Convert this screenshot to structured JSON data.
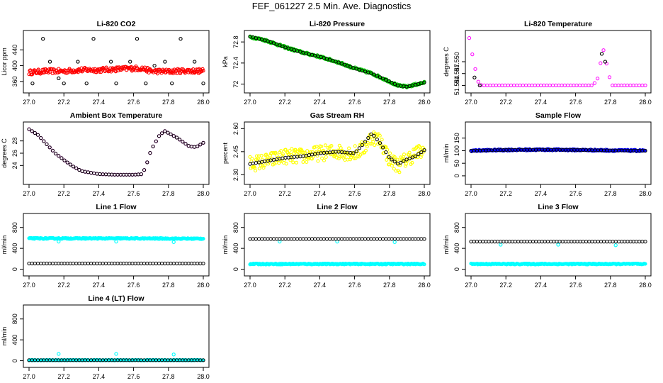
{
  "page_title": "FEF_061227  2.5 Min. Ave. Diagnostics",
  "chart_data": [
    {
      "type": "scatter",
      "title": "Li-820 CO2",
      "ylabel": "Licor ppm",
      "xlim": [
        27.0,
        28.0
      ],
      "ylim": [
        340,
        480
      ],
      "yticks": [
        360,
        400,
        440
      ],
      "xticks": [
        27.0,
        27.2,
        27.4,
        27.6,
        27.8,
        28.0
      ],
      "colors": {
        "main": "#ff0000",
        "overlay": "#000000"
      },
      "series": [
        {
          "key": "main",
          "kind": "dense",
          "color": "#ff0000",
          "x": [
            27.0,
            27.1,
            27.2,
            27.3,
            27.4,
            27.5,
            27.6,
            27.65,
            27.7,
            27.8,
            27.9,
            28.0
          ],
          "y": [
            383,
            386,
            386,
            389,
            389,
            391,
            393,
            393,
            386,
            385,
            387,
            386
          ],
          "spread": 6
        },
        {
          "key": "overlay",
          "kind": "sparse",
          "color": "#000000",
          "x": [
            27.02,
            27.08,
            27.12,
            27.17,
            27.2,
            27.28,
            27.33,
            27.37,
            27.47,
            27.5,
            27.58,
            27.62,
            27.67,
            27.72,
            27.78,
            27.82,
            27.87,
            27.95,
            28.0
          ],
          "y": [
            355,
            468,
            410,
            368,
            355,
            410,
            355,
            468,
            410,
            355,
            410,
            468,
            355,
            400,
            410,
            355,
            468,
            410,
            355
          ]
        }
      ]
    },
    {
      "type": "scatter",
      "title": "Li-820 Pressure",
      "ylabel": "kPa",
      "xlim": [
        27.0,
        28.0
      ],
      "ylim": [
        71.9,
        72.95
      ],
      "yticks": [
        72.0,
        72.4,
        72.8
      ],
      "xticks": [
        27.0,
        27.2,
        27.4,
        27.6,
        27.8,
        28.0
      ],
      "colors": {
        "main": "#00cc00",
        "overlay": "#000000"
      },
      "series": [
        {
          "key": "main",
          "kind": "dense",
          "color": "#00cc00",
          "x": [
            27.0,
            27.1,
            27.2,
            27.3,
            27.4,
            27.5,
            27.6,
            27.7,
            27.8,
            27.85,
            27.9,
            28.0
          ],
          "y": [
            72.9,
            72.82,
            72.7,
            72.6,
            72.52,
            72.42,
            72.3,
            72.2,
            72.05,
            71.97,
            71.95,
            72.03
          ],
          "spread": 0.02
        },
        {
          "key": "overlay",
          "kind": "line-markers",
          "color": "#000000",
          "x": [
            27.0,
            27.1,
            27.2,
            27.3,
            27.4,
            27.5,
            27.6,
            27.7,
            27.8,
            27.85,
            27.9,
            28.0
          ],
          "y": [
            72.9,
            72.82,
            72.7,
            72.6,
            72.52,
            72.42,
            72.3,
            72.2,
            72.05,
            71.97,
            71.95,
            72.03
          ]
        }
      ]
    },
    {
      "type": "scatter",
      "title": "Li-820 Temperature",
      "ylabel": "degrees C",
      "xlim": [
        27.0,
        28.0
      ],
      "ylim": [
        51.543,
        51.557
      ],
      "yticks": [
        51.544,
        51.547,
        51.55
      ],
      "ytick_labels": [
        "51.544",
        "51.547",
        "51.550"
      ],
      "xticks": [
        27.0,
        27.2,
        27.4,
        27.6,
        27.8,
        28.0
      ],
      "colors": {
        "main": "#ff00ff",
        "overlay": "#000000"
      },
      "series": [
        {
          "key": "main",
          "kind": "line-markers",
          "color": "#ff00ff",
          "x": [
            26.99,
            27.0,
            27.01,
            27.02,
            27.03,
            27.04,
            27.06,
            27.1,
            27.3,
            27.5,
            27.7,
            27.73,
            27.74,
            27.75,
            27.76,
            27.77,
            27.78,
            27.79,
            27.8,
            27.81,
            27.85,
            27.9,
            28.0
          ],
          "y": [
            51.556,
            51.554,
            51.551,
            51.549,
            51.547,
            51.545,
            51.544,
            51.544,
            51.544,
            51.544,
            51.544,
            51.546,
            51.549,
            51.551,
            51.553,
            51.551,
            51.549,
            51.547,
            51.545,
            51.544,
            51.544,
            51.544,
            51.544
          ]
        },
        {
          "key": "overlay",
          "kind": "sparse",
          "color": "#000000",
          "x": [
            27.02,
            27.05,
            27.75,
            27.77
          ],
          "y": [
            51.546,
            51.544,
            51.552,
            51.55
          ]
        }
      ]
    },
    {
      "type": "scatter",
      "title": "Ambient Box Temperature",
      "ylabel": "degrees C",
      "xlim": [
        27.0,
        28.0
      ],
      "ylim": [
        21.5,
        30.5
      ],
      "yticks": [
        24,
        26,
        28
      ],
      "xticks": [
        27.0,
        27.2,
        27.4,
        27.6,
        27.8,
        28.0
      ],
      "colors": {
        "main": "#ff00ff",
        "overlay": "#000000"
      },
      "series": [
        {
          "key": "main",
          "kind": "line-markers",
          "color": "#ff00ff",
          "x": [
            27.0,
            27.05,
            27.1,
            27.15,
            27.2,
            27.25,
            27.3,
            27.4,
            27.5,
            27.6,
            27.65,
            27.67,
            27.7,
            27.75,
            27.78,
            27.85,
            27.92,
            27.96,
            28.0
          ],
          "y": [
            29.9,
            29.0,
            27.5,
            26.0,
            24.9,
            23.9,
            23.1,
            22.6,
            22.5,
            22.5,
            22.6,
            23.8,
            26.5,
            29.0,
            29.6,
            28.5,
            27.1,
            27.0,
            27.7
          ]
        },
        {
          "key": "overlay",
          "kind": "line-markers",
          "color": "#000000",
          "x": [
            27.0,
            27.05,
            27.1,
            27.15,
            27.2,
            27.25,
            27.3,
            27.4,
            27.5,
            27.6,
            27.65,
            27.67,
            27.7,
            27.75,
            27.78,
            27.85,
            27.92,
            27.96,
            28.0
          ],
          "y": [
            29.9,
            29.0,
            27.5,
            26.0,
            24.9,
            23.9,
            23.1,
            22.6,
            22.5,
            22.5,
            22.6,
            23.8,
            26.5,
            29.0,
            29.6,
            28.5,
            27.1,
            27.0,
            27.7
          ]
        }
      ]
    },
    {
      "type": "scatter",
      "title": "Gas Stream RH",
      "ylabel": "percent",
      "xlim": [
        27.0,
        28.0
      ],
      "ylim": [
        2.26,
        2.62
      ],
      "yticks": [
        2.3,
        2.45,
        2.6
      ],
      "ytick_labels": [
        "2.30",
        "2.45",
        "2.60"
      ],
      "xticks": [
        27.0,
        27.2,
        27.4,
        27.6,
        27.8,
        28.0
      ],
      "colors": {
        "main": "#ffff00",
        "overlay": "#000000"
      },
      "series": [
        {
          "key": "main",
          "kind": "dense",
          "color": "#ffff00",
          "x": [
            27.0,
            27.1,
            27.2,
            27.3,
            27.4,
            27.5,
            27.6,
            27.65,
            27.7,
            27.75,
            27.8,
            27.85,
            27.9,
            27.95,
            28.0
          ],
          "y": [
            2.37,
            2.39,
            2.42,
            2.42,
            2.44,
            2.45,
            2.44,
            2.47,
            2.55,
            2.52,
            2.4,
            2.36,
            2.4,
            2.44,
            2.45
          ],
          "spread": 0.05
        },
        {
          "key": "overlay",
          "kind": "line-markers",
          "color": "#000000",
          "x": [
            27.0,
            27.1,
            27.2,
            27.3,
            27.4,
            27.5,
            27.6,
            27.65,
            27.7,
            27.75,
            27.8,
            27.85,
            27.9,
            27.95,
            28.0
          ],
          "y": [
            2.37,
            2.39,
            2.41,
            2.42,
            2.44,
            2.45,
            2.44,
            2.5,
            2.57,
            2.5,
            2.41,
            2.37,
            2.4,
            2.42,
            2.46
          ]
        }
      ]
    },
    {
      "type": "scatter",
      "title": "Sample Flow",
      "ylabel": "ml/min",
      "xlim": [
        27.0,
        28.0
      ],
      "ylim": [
        -20,
        200
      ],
      "yticks": [
        0,
        50,
        100,
        150
      ],
      "xticks": [
        27.0,
        27.2,
        27.4,
        27.6,
        27.8,
        28.0
      ],
      "colors": {
        "main": "#0000ff",
        "overlay": "#000000"
      },
      "series": [
        {
          "key": "main",
          "kind": "dense",
          "color": "#0000ff",
          "x": [
            27.0,
            27.2,
            27.4,
            27.6,
            27.8,
            28.0
          ],
          "y": [
            100,
            103,
            104,
            103,
            101,
            100
          ],
          "spread": 3
        },
        {
          "key": "overlay",
          "kind": "line-markers",
          "color": "#000000",
          "x": [
            27.0,
            27.2,
            27.4,
            27.6,
            27.8,
            28.0
          ],
          "y": [
            100,
            103,
            104,
            103,
            101,
            100
          ]
        }
      ]
    },
    {
      "type": "scatter",
      "title": "Line 1 Flow",
      "ylabel": "ml/min",
      "xlim": [
        27.0,
        28.0
      ],
      "ylim": [
        -60,
        1000
      ],
      "yticks": [
        0,
        400,
        800
      ],
      "xticks": [
        27.0,
        27.2,
        27.4,
        27.6,
        27.8,
        28.0
      ],
      "colors": {
        "main": "#00ffff",
        "overlay": "#000000"
      },
      "series": [
        {
          "key": "main",
          "kind": "dense",
          "color": "#00ffff",
          "x": [
            27.0,
            27.5,
            28.0
          ],
          "y": [
            590,
            590,
            585
          ],
          "spread": 10
        },
        {
          "key": "spikes",
          "kind": "sparse",
          "color": "#00ffff",
          "x": [
            27.17,
            27.5,
            27.83
          ],
          "y": [
            530,
            530,
            520
          ]
        },
        {
          "key": "overlay",
          "kind": "line-markers",
          "color": "#000000",
          "x": [
            27.0,
            27.5,
            28.0
          ],
          "y": [
            110,
            110,
            110
          ]
        }
      ]
    },
    {
      "type": "scatter",
      "title": "Line 2 Flow",
      "ylabel": "ml/min",
      "xlim": [
        27.0,
        28.0
      ],
      "ylim": [
        -60,
        1000
      ],
      "yticks": [
        0,
        400,
        800
      ],
      "xticks": [
        27.0,
        27.2,
        27.4,
        27.6,
        27.8,
        28.0
      ],
      "colors": {
        "main": "#00ffff",
        "overlay": "#000000"
      },
      "series": [
        {
          "key": "main",
          "kind": "dense",
          "color": "#00ffff",
          "x": [
            27.0,
            27.5,
            28.0
          ],
          "y": [
            100,
            100,
            100
          ],
          "spread": 10
        },
        {
          "key": "spikes",
          "kind": "sparse",
          "color": "#00ffff",
          "x": [
            27.17,
            27.5,
            27.83
          ],
          "y": [
            530,
            530,
            520
          ]
        },
        {
          "key": "overlay",
          "kind": "line-markers",
          "color": "#000000",
          "x": [
            27.0,
            27.5,
            28.0
          ],
          "y": [
            580,
            580,
            580
          ]
        }
      ]
    },
    {
      "type": "scatter",
      "title": "Line 3 Flow",
      "ylabel": "ml/min",
      "xlim": [
        27.0,
        28.0
      ],
      "ylim": [
        -60,
        1000
      ],
      "yticks": [
        0,
        400,
        800
      ],
      "xticks": [
        27.0,
        27.2,
        27.4,
        27.6,
        27.8,
        28.0
      ],
      "colors": {
        "main": "#00ffff",
        "overlay": "#000000"
      },
      "series": [
        {
          "key": "main",
          "kind": "dense",
          "color": "#00ffff",
          "x": [
            27.0,
            27.5,
            28.0
          ],
          "y": [
            100,
            100,
            100
          ],
          "spread": 10
        },
        {
          "key": "spikes",
          "kind": "sparse",
          "color": "#00ffff",
          "x": [
            27.17,
            27.5,
            27.83
          ],
          "y": [
            470,
            470,
            460
          ]
        },
        {
          "key": "overlay",
          "kind": "line-markers",
          "color": "#000000",
          "x": [
            27.0,
            27.5,
            28.0
          ],
          "y": [
            530,
            530,
            530
          ]
        }
      ]
    },
    {
      "type": "scatter",
      "title": "Line 4 (LT) Flow",
      "ylabel": "ml/min",
      "xlim": [
        27.0,
        28.0
      ],
      "ylim": [
        -60,
        1000
      ],
      "yticks": [
        0,
        400,
        800
      ],
      "xticks": [
        27.0,
        27.2,
        27.4,
        27.6,
        27.8,
        28.0
      ],
      "colors": {
        "main": "#00ffff",
        "overlay": "#000000"
      },
      "series": [
        {
          "key": "main",
          "kind": "dense",
          "color": "#00ffff",
          "x": [
            27.0,
            27.5,
            28.0
          ],
          "y": [
            10,
            10,
            10
          ],
          "spread": 5
        },
        {
          "key": "spikes",
          "kind": "sparse",
          "color": "#00ffff",
          "x": [
            27.17,
            27.5,
            27.83
          ],
          "y": [
            130,
            130,
            120
          ]
        },
        {
          "key": "overlay",
          "kind": "line-markers",
          "color": "#000000",
          "x": [
            27.0,
            27.5,
            28.0
          ],
          "y": [
            10,
            10,
            10
          ]
        }
      ]
    }
  ]
}
